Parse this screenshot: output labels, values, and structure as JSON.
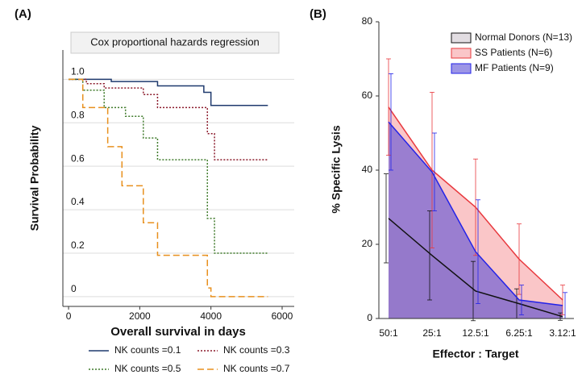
{
  "chart_data": [
    {
      "type": "line",
      "panel_label": "(A)",
      "title": "Cox proportional hazards regression",
      "x_label": "Overall survival in days",
      "y_label": "Survival Probability",
      "xlim": [
        -160,
        6340
      ],
      "ylim": [
        -0.045,
        1.135
      ],
      "xticks": [
        0,
        2000,
        4000,
        6000
      ],
      "yticks": [
        0,
        0.2,
        0.4,
        0.6,
        0.8,
        {
          "value": 1,
          "label": "1.0"
        }
      ],
      "grid": true,
      "series": [
        {
          "name": "NK counts =0.1",
          "color": "#1f3a6e",
          "dash": "solid",
          "x": [
            0,
            1200,
            1200,
            2500,
            2500,
            3800,
            3800,
            4000,
            4000,
            5600
          ],
          "values": [
            1,
            1,
            0.99,
            0.99,
            0.97,
            0.97,
            0.94,
            0.94,
            0.88,
            0.88
          ]
        },
        {
          "name": "NK counts =0.3",
          "color": "#8b1a2b",
          "dash": "dotted",
          "x": [
            0,
            500,
            500,
            1000,
            1000,
            2100,
            2100,
            2500,
            2500,
            3900,
            3900,
            4100,
            4100,
            5600
          ],
          "values": [
            1,
            1,
            0.98,
            0.98,
            0.96,
            0.96,
            0.93,
            0.93,
            0.87,
            0.87,
            0.75,
            0.75,
            0.63,
            0.63
          ]
        },
        {
          "name": "NK counts =0.5",
          "color": "#3f7a2a",
          "dash": "dotted",
          "x": [
            0,
            400,
            400,
            1000,
            1000,
            1600,
            1600,
            2100,
            2100,
            2500,
            2500,
            3900,
            3900,
            4100,
            4100,
            5600
          ],
          "values": [
            1,
            1,
            0.95,
            0.95,
            0.87,
            0.87,
            0.83,
            0.83,
            0.73,
            0.73,
            0.63,
            0.63,
            0.36,
            0.36,
            0.2,
            0.2
          ]
        },
        {
          "name": "NK counts =0.7",
          "color": "#e8901e",
          "dash": "dashed",
          "x": [
            0,
            400,
            400,
            1100,
            1100,
            1500,
            1500,
            2100,
            2100,
            2500,
            2500,
            3900,
            3900,
            4000,
            4000,
            5600
          ],
          "values": [
            1,
            1,
            0.87,
            0.87,
            0.69,
            0.69,
            0.51,
            0.51,
            0.34,
            0.34,
            0.19,
            0.19,
            0.04,
            0.04,
            0,
            0
          ]
        }
      ]
    },
    {
      "type": "area",
      "panel_label": "(B)",
      "x_label": "Effector : Target",
      "y_label": "% Specific Lysis",
      "categories": [
        "50:1",
        "25:1",
        "12.5:1",
        "6.25:1",
        "3.12:1"
      ],
      "ylim": [
        0,
        80
      ],
      "yticks": [
        0,
        20,
        40,
        60,
        80
      ],
      "grid": false,
      "series": [
        {
          "name": "Normal Donors (N=13)",
          "color": "#111111",
          "fill": "#cfc6cf",
          "values": [
            27,
            17,
            7.4,
            4,
            0.5
          ],
          "errors": [
            12,
            12,
            8,
            4,
            1
          ]
        },
        {
          "name": "SS Patients (N=6)",
          "color": "#e8383d",
          "fill": "#f7a0a3",
          "values": [
            57,
            40,
            30,
            16,
            5
          ],
          "errors": [
            13,
            21,
            13,
            9.5,
            4
          ]
        },
        {
          "name": "MF Patients (N=9)",
          "color": "#2323e8",
          "fill": "#5a4fd6",
          "values": [
            53,
            39.5,
            18,
            5,
            3.5
          ],
          "errors": [
            13,
            10.5,
            14,
            4,
            3.5
          ]
        }
      ]
    }
  ]
}
